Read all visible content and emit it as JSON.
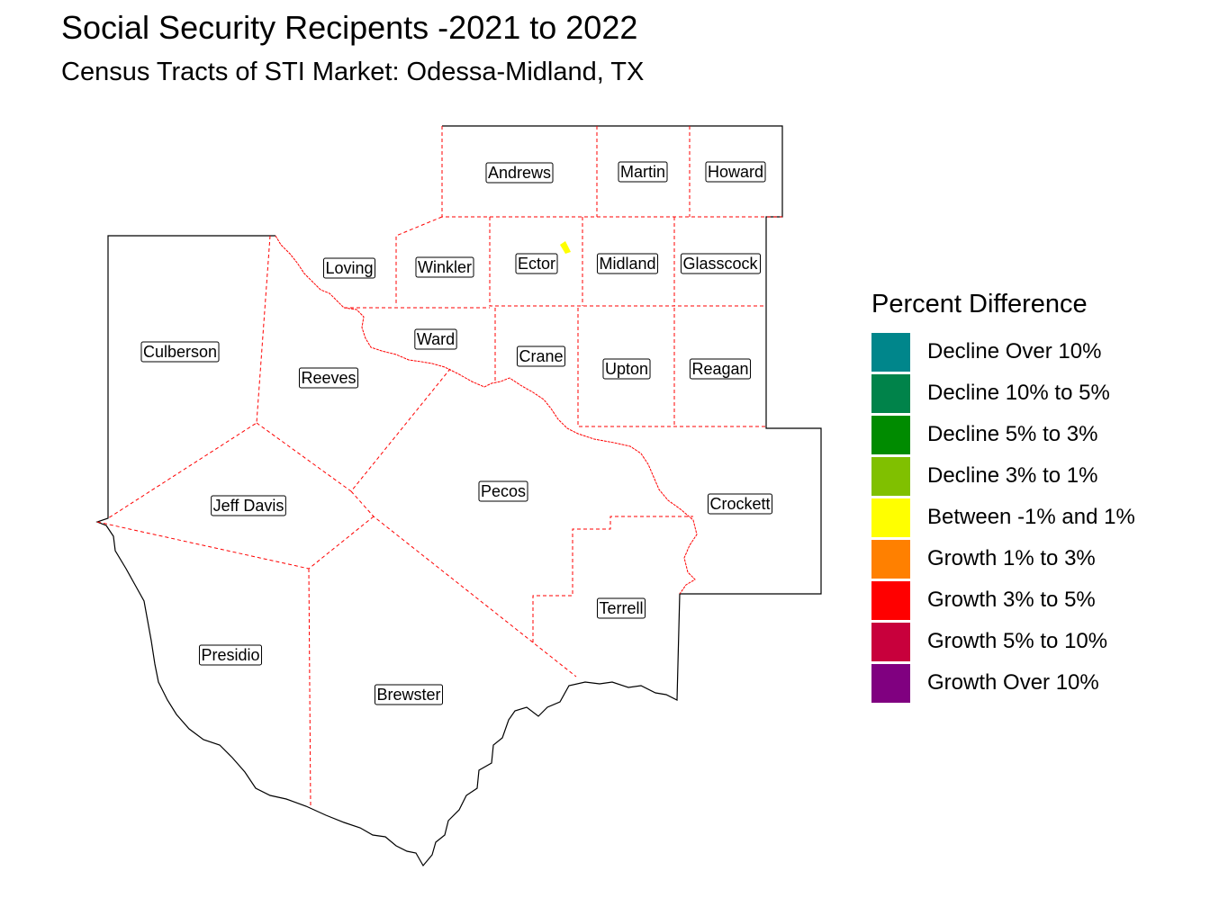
{
  "title": "Social Security Recipents -2021 to 2022",
  "subtitle": "Census Tracts of STI Market: Odessa-Midland, TX",
  "legend": {
    "title": "Percent Difference",
    "items": [
      {
        "label": "Decline Over 10%",
        "color": "#00868B"
      },
      {
        "label": "Decline 10% to 5%",
        "color": "#00834A"
      },
      {
        "label": "Decline 5% to 3%",
        "color": "#008B00"
      },
      {
        "label": "Decline 3% to 1%",
        "color": "#80C000"
      },
      {
        "label": "Between -1% and 1%",
        "color": "#FFFF00"
      },
      {
        "label": "Growth 1% to 3%",
        "color": "#FF8000"
      },
      {
        "label": "Growth 3% to 5%",
        "color": "#FF0000"
      },
      {
        "label": "Growth 5% to 10%",
        "color": "#C8003C"
      },
      {
        "label": "Growth Over 10%",
        "color": "#800080"
      }
    ]
  },
  "counties": [
    "Andrews",
    "Martin",
    "Howard",
    "Loving",
    "Winkler",
    "Ector",
    "Midland",
    "Glasscock",
    "Culberson",
    "Ward",
    "Crane",
    "Upton",
    "Reagan",
    "Reeves",
    "Pecos",
    "Crockett",
    "Jeff Davis",
    "Terrell",
    "Presidio",
    "Brewster"
  ],
  "highlighted_tract": {
    "county": "Ector",
    "category": "Between -1% and 1%",
    "color": "#FFFF00"
  },
  "colors": {
    "county_border": "#FF0000",
    "outer_border": "#000000"
  }
}
